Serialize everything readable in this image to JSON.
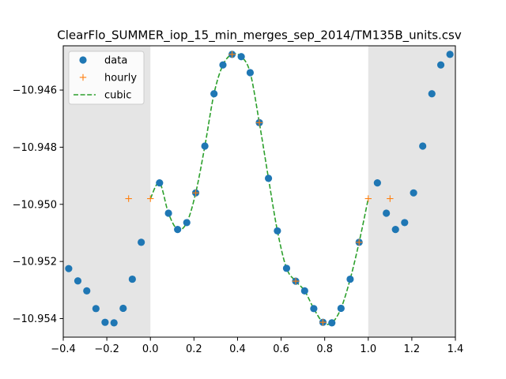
{
  "chart_data": {
    "type": "scatter",
    "title": "ClearFlo_SUMMER_iop_15_min_merges_sep_2014/TM135B_units.csv",
    "xlim": [
      -0.4,
      1.4
    ],
    "ylim": [
      -10.95465,
      -10.94445
    ],
    "x_ticks": [
      -0.4,
      -0.2,
      0.0,
      0.2,
      0.4,
      0.6,
      0.8,
      1.0,
      1.2,
      1.4
    ],
    "x_tick_labels": [
      "−0.4",
      "−0.2",
      "0.0",
      "0.2",
      "0.4",
      "0.6",
      "0.8",
      "1.0",
      "1.2",
      "1.4"
    ],
    "y_ticks": [
      -10.954,
      -10.952,
      -10.95,
      -10.948,
      -10.946
    ],
    "y_tick_labels": [
      "−10.954",
      "−10.952",
      "−10.950",
      "−10.948",
      "−10.946"
    ],
    "shaded_regions": [
      [
        -0.4,
        0.0
      ],
      [
        1.0,
        1.4
      ]
    ],
    "grid": false,
    "legend_position": "top-left",
    "colors": {
      "data": "#1f77b4",
      "hourly": "#ff7f0e",
      "cubic": "#2ca02c",
      "shade": "#e5e5e5"
    },
    "series": [
      {
        "name": "data",
        "style": "markers",
        "x": [
          -0.375,
          -0.333,
          -0.292,
          -0.25,
          -0.208,
          -0.167,
          -0.125,
          -0.083,
          -0.042,
          0.042,
          0.083,
          0.125,
          0.167,
          0.208,
          0.25,
          0.292,
          0.333,
          0.375,
          0.417,
          0.458,
          0.5,
          0.542,
          0.583,
          0.625,
          0.667,
          0.708,
          0.75,
          0.792,
          0.833,
          0.875,
          0.917,
          0.958,
          1.042,
          1.083,
          1.125,
          1.167,
          1.208,
          1.25,
          1.292,
          1.333,
          1.375
        ],
        "y": [
          -10.95225,
          -10.95268,
          -10.95303,
          -10.95365,
          -10.95413,
          -10.95415,
          -10.95364,
          -10.95262,
          -10.95133,
          -10.94925,
          -10.95031,
          -10.95088,
          -10.95064,
          -10.9496,
          -10.94796,
          -10.94613,
          -10.94512,
          -10.94475,
          -10.94483,
          -10.94539,
          -10.94714,
          -10.94909,
          -10.95093,
          -10.95224,
          -10.95269,
          -10.95303,
          -10.95365,
          -10.95413,
          -10.95415,
          -10.95364,
          -10.95262,
          -10.95133,
          -10.94925,
          -10.95031,
          -10.95088,
          -10.95064,
          -10.9496,
          -10.94796,
          -10.94613,
          -10.94512,
          -10.94475
        ]
      },
      {
        "name": "hourly",
        "style": "plus",
        "x": [
          -0.1,
          0.0,
          0.208,
          0.375,
          0.5,
          0.667,
          0.792,
          0.958,
          1.0,
          1.1
        ],
        "y": [
          -10.9498,
          -10.9498,
          -10.9496,
          -10.94475,
          -10.94714,
          -10.95269,
          -10.95413,
          -10.95133,
          -10.9498,
          -10.9498
        ]
      },
      {
        "name": "cubic",
        "style": "dashed-line",
        "x": [
          0.0,
          0.042,
          0.083,
          0.125,
          0.167,
          0.208,
          0.25,
          0.292,
          0.333,
          0.375,
          0.417,
          0.458,
          0.5,
          0.542,
          0.583,
          0.625,
          0.667,
          0.708,
          0.75,
          0.792,
          0.833,
          0.875,
          0.917,
          0.958,
          1.0
        ],
        "y": [
          -10.9498,
          -10.94925,
          -10.95031,
          -10.95088,
          -10.95064,
          -10.9496,
          -10.94796,
          -10.94613,
          -10.94512,
          -10.94475,
          -10.94483,
          -10.94539,
          -10.94714,
          -10.94909,
          -10.95093,
          -10.95224,
          -10.95269,
          -10.95303,
          -10.95365,
          -10.95413,
          -10.95415,
          -10.95364,
          -10.95262,
          -10.95133,
          -10.9498
        ]
      }
    ]
  }
}
